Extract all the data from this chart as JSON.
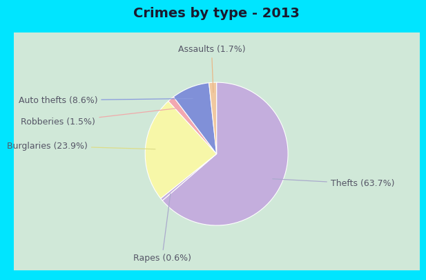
{
  "title": "Crimes by type - 2013",
  "slices": [
    {
      "label": "Thefts (63.7%)",
      "value": 63.7,
      "color": "#c4aedd"
    },
    {
      "label": "Rapes (0.6%)",
      "value": 0.6,
      "color": "#c4aedd"
    },
    {
      "label": "Burglaries (23.9%)",
      "value": 23.9,
      "color": "#f7f7a8"
    },
    {
      "label": "Robberies (1.5%)",
      "value": 1.5,
      "color": "#f2a8b0"
    },
    {
      "label": "Auto thefts (8.6%)",
      "value": 8.6,
      "color": "#8090d8"
    },
    {
      "label": "Assaults (1.7%)",
      "value": 1.7,
      "color": "#f0c8a0"
    }
  ],
  "bg_outer": "#00e5ff",
  "bg_inner": "#d0e8d8",
  "title_fontsize": 14,
  "label_fontsize": 9,
  "title_color": "#1a1a2e"
}
